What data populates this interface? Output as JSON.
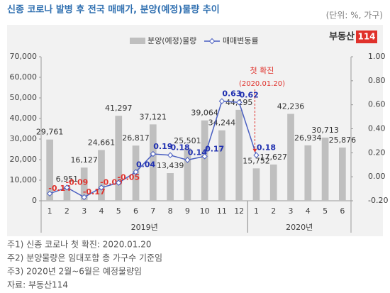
{
  "chart_data": {
    "type": "bar_line",
    "title": "신종 코로나 발병 후 전국 매매가, 분양(예정)물량 추이",
    "unit_note": "(단위: %, 가구)",
    "logo": {
      "text": "부동산",
      "badge": "114"
    },
    "categories": [
      "1",
      "2",
      "3",
      "4",
      "5",
      "6",
      "7",
      "8",
      "9",
      "10",
      "11",
      "12",
      "1",
      "2",
      "3",
      "4",
      "5",
      "6"
    ],
    "groups": [
      {
        "label": "2019년",
        "start": 0,
        "end": 11
      },
      {
        "label": "2020년",
        "start": 12,
        "end": 17
      }
    ],
    "series": [
      {
        "name": "분양(예정)물량",
        "type": "bar",
        "color": "#bfbfbf",
        "values": [
          29761,
          6951,
          16127,
          24661,
          41297,
          26817,
          37121,
          13439,
          25501,
          39064,
          34244,
          44195,
          15752,
          17627,
          42236,
          26934,
          30713,
          25876
        ],
        "value_labels": [
          "29,761",
          "6,951",
          "16,127",
          "24,661",
          "41,297",
          "26,817",
          "37,121",
          "13,439",
          "25,501",
          "39,064",
          "34,244",
          "44,195",
          "15,752",
          "17,627",
          "42,236",
          "26,934",
          "30,713",
          "25,876"
        ]
      },
      {
        "name": "매매변동률",
        "type": "line",
        "axis": "y2",
        "color": "#4a5fc1",
        "values": [
          -0.14,
          -0.09,
          -0.17,
          -0.09,
          -0.05,
          0.04,
          0.19,
          0.18,
          0.14,
          0.17,
          0.63,
          0.62,
          0.18,
          null,
          null,
          null,
          null,
          null
        ]
      }
    ],
    "ylim": [
      0,
      70000
    ],
    "yticks": [
      0,
      {
        "value": 10000,
        "label": "10,000"
      },
      {
        "value": 20000,
        "label": "20,000"
      },
      {
        "value": 30000,
        "label": "30,000"
      },
      {
        "value": 40000,
        "label": "40,000"
      },
      {
        "value": 50000,
        "label": "50,000"
      },
      {
        "value": 60000,
        "label": "60,000"
      },
      {
        "value": 70000,
        "label": "70,000"
      }
    ],
    "y2lim": [
      -0.2,
      1.0
    ],
    "y2ticks": [
      {
        "value": -0.2,
        "label": "-0.20"
      },
      {
        "value": 0,
        "label": "0.00"
      },
      {
        "value": 0.2,
        "label": "0.20"
      },
      {
        "value": 0.4,
        "label": "0.40"
      },
      {
        "value": 0.6,
        "label": "0.60"
      },
      {
        "value": 0.8,
        "label": "0.80"
      },
      {
        "value": 1.0,
        "label": "1.00"
      }
    ],
    "annotation": {
      "text": "첫 확진",
      "date": "(2020.01.20)",
      "index": 12
    },
    "notes": [
      "주1) 신종 코로나 첫 확진: 2020.01.20",
      "주2) 분양물량은 임대포함 총 가구수 기준임",
      "주3) 2020년 2월~6월은 예정물량임",
      "자료: 부동산114"
    ]
  }
}
